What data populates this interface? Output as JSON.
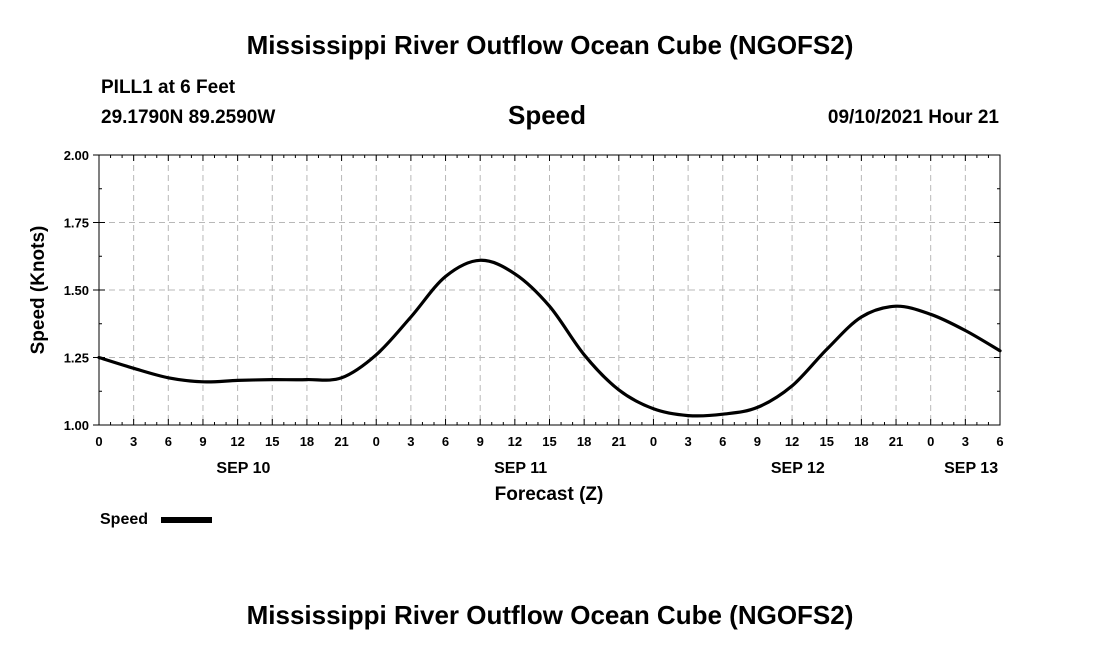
{
  "header": {
    "title_top": "Mississippi River Outflow Ocean Cube (NGOFS2)",
    "title_bottom": "Mississippi River Outflow Ocean Cube (NGOFS2)",
    "station": "PILL1 at 6 Feet",
    "coords": "29.1790N  89.2590W",
    "datetime": "09/10/2021 Hour 21"
  },
  "chart_data": {
    "type": "line",
    "title": "Speed",
    "xlabel": "Forecast (Z)",
    "ylabel": "Speed (Knots)",
    "xlim": [
      0,
      78
    ],
    "ylim": [
      1.0,
      2.0
    ],
    "grid": true,
    "x_tick_values": [
      0,
      3,
      6,
      9,
      12,
      15,
      18,
      21,
      24,
      27,
      30,
      33,
      36,
      39,
      42,
      45,
      48,
      51,
      54,
      57,
      60,
      63,
      66,
      69,
      72,
      75,
      78
    ],
    "x_tick_labels": [
      "0",
      "3",
      "6",
      "9",
      "12",
      "15",
      "18",
      "21",
      "0",
      "3",
      "6",
      "9",
      "12",
      "15",
      "18",
      "21",
      "0",
      "3",
      "6",
      "9",
      "12",
      "15",
      "18",
      "21",
      "0",
      "3",
      "6"
    ],
    "y_tick_values": [
      1.0,
      1.25,
      1.5,
      1.75,
      2.0
    ],
    "y_tick_labels": [
      "1.00",
      "1.25",
      "1.50",
      "1.75",
      "2.00"
    ],
    "date_labels": [
      {
        "x": 12.5,
        "label": "SEP 10"
      },
      {
        "x": 36.5,
        "label": "SEP 11"
      },
      {
        "x": 60.5,
        "label": "SEP 12"
      },
      {
        "x": 75.5,
        "label": "SEP 13"
      }
    ],
    "series": [
      {
        "name": "Speed",
        "color": "#000000",
        "x": [
          0,
          3,
          6,
          9,
          12,
          15,
          18,
          21,
          24,
          27,
          30,
          33,
          36,
          39,
          42,
          45,
          48,
          51,
          54,
          57,
          60,
          63,
          66,
          69,
          72,
          75,
          78
        ],
        "values": [
          1.25,
          1.21,
          1.175,
          1.16,
          1.165,
          1.168,
          1.168,
          1.175,
          1.26,
          1.4,
          1.55,
          1.61,
          1.56,
          1.44,
          1.26,
          1.13,
          1.06,
          1.035,
          1.04,
          1.065,
          1.145,
          1.28,
          1.4,
          1.44,
          1.41,
          1.35,
          1.275
        ]
      }
    ],
    "legend": {
      "label": "Speed",
      "position": "bottom-left"
    }
  }
}
